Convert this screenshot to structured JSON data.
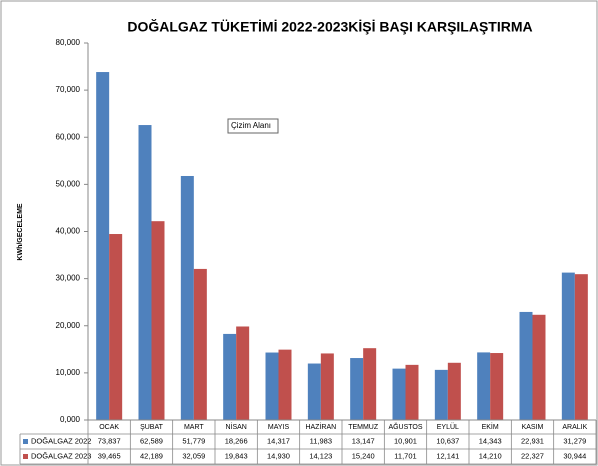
{
  "chart_data": {
    "type": "bar",
    "title": "DOĞALGAZ TÜKETİMİ 2022-2023KİŞİ BAŞI KARŞILAŞTIRMA",
    "y_label": "KWh/GECELEME",
    "tooltip": "Çizim Alanı",
    "categories": [
      "OCAK",
      "ŞUBAT",
      "MART",
      "NİSAN",
      "MAYIS",
      "HAZİRAN",
      "TEMMUZ",
      "AĞUSTOS",
      "EYLÜL",
      "EKİM",
      "KASIM",
      "ARALIK"
    ],
    "series": [
      {
        "name": "DOĞALGAZ 2022",
        "color": "#4f81bd",
        "values": [
          73837,
          62589,
          51779,
          18266,
          14317,
          11983,
          13147,
          10901,
          10637,
          14343,
          22931,
          31279
        ],
        "value_labels": [
          "73,837",
          "62,589",
          "51,779",
          "18,266",
          "14,317",
          "11,983",
          "13,147",
          "10,901",
          "10,637",
          "14,343",
          "22,931",
          "31,279"
        ]
      },
      {
        "name": "DOĞALGAZ 2023",
        "color": "#c0504d",
        "values": [
          39465,
          42189,
          32059,
          19843,
          14930,
          14123,
          15240,
          11701,
          12141,
          14210,
          22327,
          30944
        ],
        "value_labels": [
          "39,465",
          "42,189",
          "32,059",
          "19,843",
          "14,930",
          "14,123",
          "15,240",
          "11,701",
          "12,141",
          "14,210",
          "22,327",
          "30,944"
        ]
      }
    ],
    "ylim": [
      0,
      80000
    ],
    "yticks": [
      {
        "value": 0,
        "label": "0,000"
      },
      {
        "value": 10000,
        "label": "10,000"
      },
      {
        "value": 20000,
        "label": "20,000"
      },
      {
        "value": 30000,
        "label": "30,000"
      },
      {
        "value": 40000,
        "label": "40,000"
      },
      {
        "value": 50000,
        "label": "50,000"
      },
      {
        "value": 60000,
        "label": "60,000"
      },
      {
        "value": 70000,
        "label": "70,000"
      },
      {
        "value": 80000,
        "label": "80,000"
      }
    ],
    "grid": false
  }
}
